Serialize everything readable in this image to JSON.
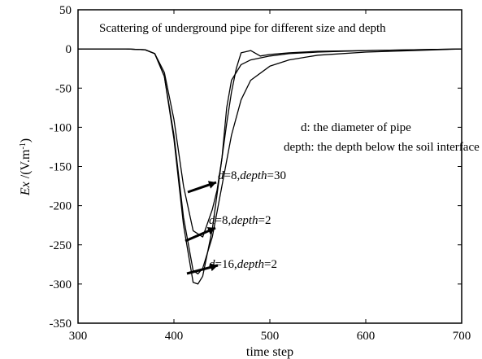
{
  "chart_data": {
    "type": "line",
    "title": "Scattering of  underground pipe for different size and depth",
    "xlabel": "time step",
    "ylabel_main": "Ex",
    "ylabel_unit": " /(V.m",
    "ylabel_sup": "-1",
    "ylabel_close": ")",
    "xlim": [
      300,
      700
    ],
    "ylim": [
      -350,
      50
    ],
    "xticks": [
      300,
      400,
      500,
      600,
      700
    ],
    "yticks": [
      50,
      0,
      -50,
      -100,
      -150,
      -200,
      -250,
      -300,
      -350
    ],
    "grid": false,
    "notes": [
      "d: the diameter of pipe",
      "depth: the depth below the soil interface"
    ],
    "series": [
      {
        "label": "d=8, depth=30",
        "label_parts": [
          "d",
          "=8,",
          "depth",
          "=30"
        ],
        "x": [
          300,
          350,
          370,
          380,
          390,
          400,
          410,
          420,
          430,
          440,
          445,
          450,
          455,
          460,
          465,
          470,
          480,
          490,
          500,
          520,
          550,
          600,
          650,
          700
        ],
        "y": [
          0,
          0,
          -1,
          -6,
          -30,
          -90,
          -175,
          -232,
          -240,
          -205,
          -180,
          -140,
          -95,
          -55,
          -25,
          -5,
          -2,
          -9,
          -7,
          -5,
          -3,
          -2,
          -1,
          0
        ]
      },
      {
        "label": "d=8, depth=2",
        "label_parts": [
          "d",
          "=8,",
          "depth",
          "=2"
        ],
        "x": [
          300,
          350,
          370,
          380,
          390,
          400,
          410,
          420,
          425,
          430,
          440,
          450,
          460,
          470,
          480,
          500,
          520,
          550,
          600,
          650,
          700
        ],
        "y": [
          0,
          0,
          -1,
          -6,
          -35,
          -110,
          -215,
          -283,
          -287,
          -280,
          -240,
          -175,
          -110,
          -65,
          -40,
          -22,
          -14,
          -8,
          -4,
          -2,
          0
        ]
      },
      {
        "label": "d=16, depth=2",
        "label_parts": [
          "d",
          "=16,",
          "depth",
          "=2"
        ],
        "x": [
          300,
          350,
          370,
          380,
          390,
          400,
          410,
          420,
          425,
          430,
          440,
          450,
          455,
          460,
          470,
          480,
          500,
          520,
          550,
          600,
          650,
          700
        ],
        "y": [
          0,
          0,
          -1,
          -6,
          -35,
          -115,
          -225,
          -298,
          -300,
          -290,
          -230,
          -140,
          -75,
          -40,
          -20,
          -14,
          -9,
          -6,
          -4,
          -2,
          -1,
          0
        ]
      }
    ],
    "annotations": [
      {
        "series": 0,
        "text_at": [
          437,
          -183
        ],
        "arrow_to": [
          437,
          -183
        ]
      },
      {
        "series": 1,
        "text_at": [
          437,
          -234
        ],
        "arrow_to": [
          437,
          -234
        ]
      },
      {
        "series": 2,
        "text_at": [
          437,
          -282
        ],
        "arrow_to": [
          437,
          -282
        ]
      }
    ]
  }
}
